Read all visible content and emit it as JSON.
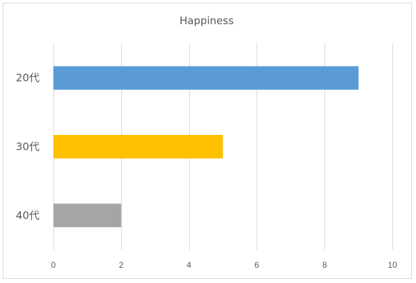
{
  "chart_data": {
    "type": "bar",
    "orientation": "horizontal",
    "title": "Happiness",
    "categories": [
      "20代",
      "30代",
      "40代"
    ],
    "values": [
      9,
      5,
      2
    ],
    "bar_colors": [
      "#5b9bd5",
      "#ffc000",
      "#a5a5a5"
    ],
    "xlim": [
      0,
      10
    ],
    "x_ticks": [
      0,
      2,
      4,
      6,
      8,
      10
    ],
    "grid": true,
    "legend": "none",
    "xlabel": "",
    "ylabel": ""
  }
}
